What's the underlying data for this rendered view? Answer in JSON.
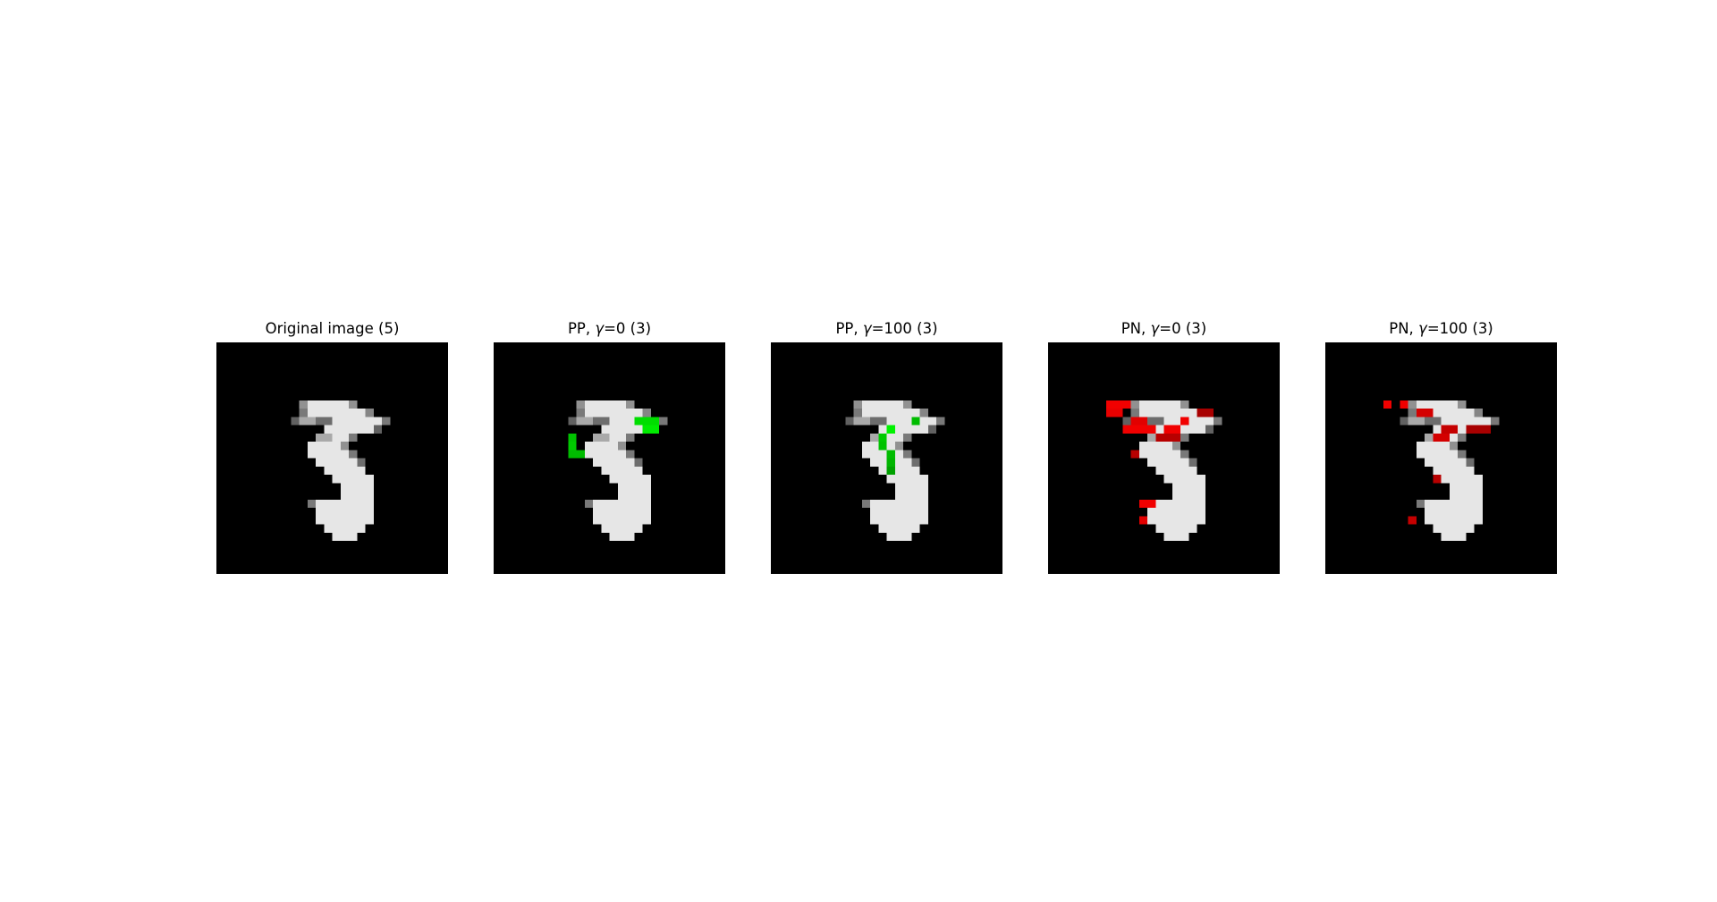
{
  "figure": {
    "panels": [
      {
        "title_pre": "Original image (5)",
        "gamma": "",
        "title_post": "",
        "overlay": "none"
      },
      {
        "title_pre": "PP, ",
        "gamma": "γ",
        "title_post": "=0 (3)",
        "overlay": "green"
      },
      {
        "title_pre": "PP, ",
        "gamma": "γ",
        "title_post": "=100 (3)",
        "overlay": "green"
      },
      {
        "title_pre": "PN, ",
        "gamma": "γ",
        "title_post": "=0 (3)",
        "overlay": "red"
      },
      {
        "title_pre": "PN, ",
        "gamma": "γ",
        "title_post": "=100 (3)",
        "overlay": "red"
      }
    ],
    "colors": {
      "background": "#000000",
      "digit": "#f2f2f2",
      "pertinent_positive": "#00c000",
      "pertinent_negative": "#ff0000"
    }
  }
}
